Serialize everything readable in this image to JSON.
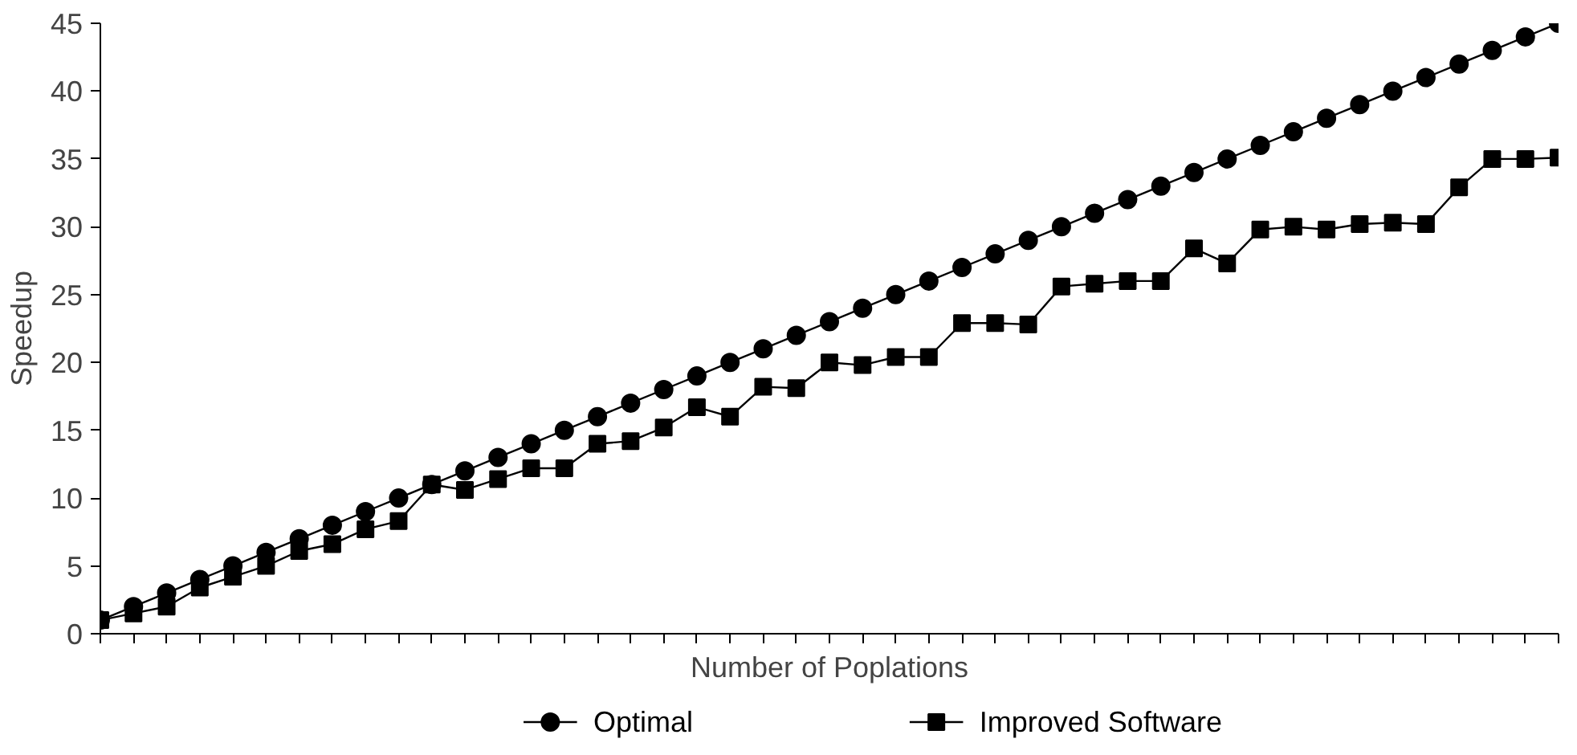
{
  "chart_data": {
    "type": "line",
    "xlabel": "Number of Poplations",
    "ylabel": "Speedup",
    "categories": [
      null,
      null,
      null,
      null,
      null,
      null,
      null,
      null,
      null,
      null,
      null,
      null,
      null,
      null,
      null,
      null,
      null,
      null,
      null,
      null,
      null,
      null,
      null,
      null,
      null,
      null,
      null,
      null,
      null,
      null,
      null,
      null,
      null,
      null,
      null,
      null,
      null,
      null,
      null,
      null,
      null,
      null,
      null,
      null,
      null
    ],
    "series": [
      {
        "name": "Optimal",
        "color": "#000000",
        "marker": "circle",
        "values": [
          1,
          2,
          3,
          4,
          5,
          6,
          7,
          8,
          9,
          10,
          11,
          12,
          13,
          14,
          15,
          16,
          17,
          18,
          19,
          20,
          21,
          22,
          23,
          24,
          25,
          26,
          27,
          28,
          29,
          30,
          31,
          32,
          33,
          34,
          35,
          36,
          37,
          38,
          39,
          40,
          41,
          42,
          43,
          44,
          45
        ]
      },
      {
        "name": "Improved Software",
        "color": "#000000",
        "marker": "square",
        "values": [
          1,
          1.5,
          2,
          3.4,
          4.2,
          5,
          6.1,
          6.6,
          7.7,
          8.3,
          11,
          10.6,
          11.4,
          12.2,
          12.2,
          14,
          14.2,
          15.2,
          16.7,
          16,
          18.2,
          18.1,
          20,
          19.8,
          20.4,
          20.4,
          22.9,
          22.9,
          22.8,
          25.6,
          25.8,
          26,
          26,
          28.4,
          27.3,
          29.8,
          30,
          29.8,
          30.2,
          30.3,
          30.2,
          32.9,
          35,
          35,
          35.1
        ]
      }
    ],
    "ylim": [
      0,
      45
    ],
    "yticks": [
      0,
      5,
      10,
      15,
      20,
      25,
      30,
      35,
      40,
      45
    ],
    "grid": false,
    "legend": "bottom",
    "line_style": "solid"
  }
}
